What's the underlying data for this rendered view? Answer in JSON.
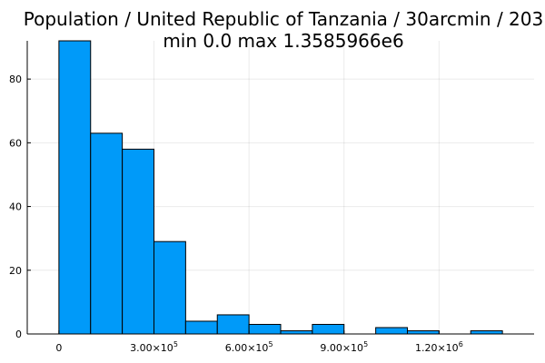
{
  "chart_data": {
    "type": "bar",
    "title_line1": "Population / United Republic of Tanzania / 30arcmin / 203",
    "title_line2": "min 0.0  max 1.3585966e6",
    "xlabel": "",
    "ylabel": "",
    "bin_width": 100000,
    "bins": [
      {
        "start": 0,
        "end": 100000,
        "count": 92
      },
      {
        "start": 100000,
        "end": 200000,
        "count": 63
      },
      {
        "start": 200000,
        "end": 300000,
        "count": 58
      },
      {
        "start": 300000,
        "end": 400000,
        "count": 29
      },
      {
        "start": 400000,
        "end": 500000,
        "count": 4
      },
      {
        "start": 500000,
        "end": 600000,
        "count": 6
      },
      {
        "start": 600000,
        "end": 700000,
        "count": 3
      },
      {
        "start": 700000,
        "end": 800000,
        "count": 1
      },
      {
        "start": 800000,
        "end": 900000,
        "count": 3
      },
      {
        "start": 900000,
        "end": 1000000,
        "count": 0
      },
      {
        "start": 1000000,
        "end": 1100000,
        "count": 2
      },
      {
        "start": 1100000,
        "end": 1200000,
        "count": 1
      },
      {
        "start": 1200000,
        "end": 1300000,
        "count": 0
      },
      {
        "start": 1300000,
        "end": 1400000,
        "count": 1
      }
    ],
    "xlim": [
      -100000,
      1500000
    ],
    "ylim": [
      0,
      92
    ],
    "x_ticks": [
      {
        "value": 0,
        "mantissa": "0",
        "exponent": ""
      },
      {
        "value": 300000,
        "mantissa": "3.00×10",
        "exponent": "5"
      },
      {
        "value": 600000,
        "mantissa": "6.00×10",
        "exponent": "5"
      },
      {
        "value": 900000,
        "mantissa": "9.00×10",
        "exponent": "5"
      },
      {
        "value": 1200000,
        "mantissa": "1.20×10",
        "exponent": "6"
      }
    ],
    "y_ticks": [
      0,
      20,
      40,
      60,
      80
    ],
    "grid": true,
    "legend": "none",
    "bar_color": "#009af9"
  }
}
